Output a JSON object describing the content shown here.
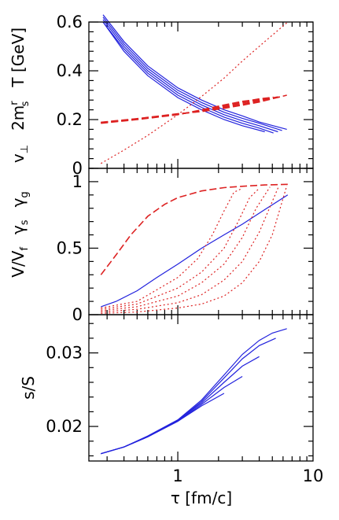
{
  "chart_data": [
    {
      "type": "line",
      "panel": "top",
      "ylabel_parts": {
        "v": "v",
        "v_sub": "⊥",
        "m_pre": "2m",
        "m_sup": "r",
        "m_sub": "s",
        "t": "T [GeV]"
      },
      "xscale": "log",
      "xlim": [
        0.22,
        10
      ],
      "ylim": [
        0,
        0.6
      ],
      "yticks": [
        0,
        0.2,
        0.4,
        0.6
      ],
      "yticklabels": [
        "0",
        "0.2",
        "0.4",
        "0.6"
      ],
      "grid": false,
      "series": [
        {
          "group": "T",
          "color": "#2222dd",
          "style": "solid",
          "x": [
            0.28,
            0.4,
            0.6,
            1.0,
            1.5,
            2.2,
            3.0,
            4.4
          ],
          "y": [
            0.6,
            0.48,
            0.38,
            0.29,
            0.24,
            0.2,
            0.175,
            0.15
          ]
        },
        {
          "group": "T",
          "color": "#2222dd",
          "style": "solid",
          "x": [
            0.28,
            0.4,
            0.6,
            1.0,
            1.5,
            2.2,
            3.0,
            4.0,
            5.1
          ],
          "y": [
            0.6,
            0.49,
            0.39,
            0.3,
            0.25,
            0.21,
            0.185,
            0.165,
            0.145
          ]
        },
        {
          "group": "T",
          "color": "#2222dd",
          "style": "solid",
          "x": [
            0.28,
            0.4,
            0.6,
            1.0,
            1.5,
            2.2,
            3.0,
            4.0,
            5.5
          ],
          "y": [
            0.61,
            0.5,
            0.4,
            0.31,
            0.26,
            0.22,
            0.195,
            0.175,
            0.15
          ]
        },
        {
          "group": "T",
          "color": "#2222dd",
          "style": "solid",
          "x": [
            0.28,
            0.4,
            0.6,
            1.0,
            1.5,
            2.2,
            3.0,
            4.0,
            5.9
          ],
          "y": [
            0.62,
            0.51,
            0.41,
            0.32,
            0.27,
            0.23,
            0.205,
            0.185,
            0.155
          ]
        },
        {
          "group": "T",
          "color": "#2222dd",
          "style": "solid",
          "x": [
            0.28,
            0.4,
            0.6,
            1.0,
            1.5,
            2.2,
            3.0,
            4.0,
            6.4
          ],
          "y": [
            0.63,
            0.52,
            0.42,
            0.33,
            0.28,
            0.24,
            0.215,
            0.19,
            0.16
          ]
        },
        {
          "group": "v_perp",
          "color": "#dd2222",
          "style": "dotted",
          "x": [
            0.27,
            0.4,
            0.6,
            1.0,
            1.5,
            2.2,
            3.0,
            4.4,
            6.5
          ],
          "y": [
            0.02,
            0.075,
            0.135,
            0.22,
            0.295,
            0.37,
            0.44,
            0.52,
            0.6
          ]
        },
        {
          "group": "2m_s",
          "color": "#dd2222",
          "style": "dashed",
          "x": [
            0.27,
            0.5,
            1.0,
            1.5,
            2.2,
            3.0,
            4.4
          ],
          "y": [
            0.185,
            0.2,
            0.22,
            0.24,
            0.26,
            0.275,
            0.285
          ]
        },
        {
          "group": "2m_s",
          "color": "#dd2222",
          "style": "dashed",
          "x": [
            0.27,
            0.5,
            1.0,
            1.5,
            2.2,
            3.0,
            4.0,
            5.1
          ],
          "y": [
            0.186,
            0.201,
            0.221,
            0.237,
            0.256,
            0.273,
            0.285,
            0.292
          ]
        },
        {
          "group": "2m_s",
          "color": "#dd2222",
          "style": "dashed",
          "x": [
            0.27,
            0.5,
            1.0,
            1.5,
            2.2,
            3.0,
            4.0,
            5.5
          ],
          "y": [
            0.187,
            0.202,
            0.222,
            0.235,
            0.252,
            0.268,
            0.28,
            0.293
          ]
        },
        {
          "group": "2m_s",
          "color": "#dd2222",
          "style": "dashed",
          "x": [
            0.27,
            0.5,
            1.0,
            1.5,
            2.2,
            3.0,
            4.0,
            5.9
          ],
          "y": [
            0.188,
            0.203,
            0.223,
            0.234,
            0.249,
            0.263,
            0.276,
            0.295
          ]
        },
        {
          "group": "2m_s",
          "color": "#dd2222",
          "style": "dashed",
          "x": [
            0.27,
            0.5,
            1.0,
            1.5,
            2.2,
            3.0,
            4.0,
            6.4
          ],
          "y": [
            0.189,
            0.204,
            0.224,
            0.233,
            0.246,
            0.259,
            0.272,
            0.3
          ]
        }
      ]
    },
    {
      "type": "line",
      "panel": "middle",
      "ylabel_parts": {
        "vv": "V/V",
        "vv_sub": "f",
        "gs": "γ",
        "gs_sub": "s",
        "gg": "γ",
        "gg_sub": "g"
      },
      "xscale": "log",
      "xlim": [
        0.22,
        10
      ],
      "ylim": [
        0,
        1.1
      ],
      "yticks": [
        0,
        0.5,
        1
      ],
      "yticklabels": [
        "0",
        "0.5",
        "1"
      ],
      "grid": false,
      "series": [
        {
          "group": "gamma_g",
          "color": "#dd2222",
          "style": "dashed",
          "x": [
            0.27,
            0.35,
            0.45,
            0.6,
            0.8,
            1.0,
            1.5,
            2.2,
            3.0,
            4.4,
            6.5
          ],
          "y": [
            0.3,
            0.45,
            0.6,
            0.74,
            0.83,
            0.88,
            0.93,
            0.955,
            0.965,
            0.975,
            0.98
          ]
        },
        {
          "group": "V/V_f",
          "color": "#2222dd",
          "style": "solid",
          "x": [
            0.27,
            0.35,
            0.5,
            0.7,
            1.0,
            1.5,
            2.2,
            3.0,
            4.4,
            6.5
          ],
          "y": [
            0.06,
            0.1,
            0.18,
            0.28,
            0.38,
            0.5,
            0.6,
            0.68,
            0.79,
            0.9
          ]
        },
        {
          "group": "gamma_s",
          "color": "#dd2222",
          "style": "dotted",
          "x": [
            0.27,
            0.5,
            1.0,
            1.4,
            1.8,
            2.2,
            2.6,
            3.0
          ],
          "y": [
            0.05,
            0.1,
            0.28,
            0.42,
            0.6,
            0.78,
            0.92,
            0.95
          ]
        },
        {
          "group": "gamma_s",
          "color": "#dd2222",
          "style": "dotted",
          "x": [
            0.27,
            0.5,
            1.0,
            1.5,
            2.2,
            2.8,
            3.4,
            4.0
          ],
          "y": [
            0.04,
            0.08,
            0.2,
            0.32,
            0.5,
            0.7,
            0.88,
            0.95
          ]
        },
        {
          "group": "gamma_s",
          "color": "#dd2222",
          "style": "dotted",
          "x": [
            0.27,
            0.5,
            1.0,
            1.5,
            2.2,
            3.0,
            3.8,
            4.8
          ],
          "y": [
            0.03,
            0.06,
            0.14,
            0.24,
            0.38,
            0.58,
            0.8,
            0.96
          ]
        },
        {
          "group": "gamma_s",
          "color": "#dd2222",
          "style": "dotted",
          "x": [
            0.27,
            0.5,
            1.0,
            1.5,
            2.2,
            3.0,
            4.0,
            5.6
          ],
          "y": [
            0.02,
            0.04,
            0.09,
            0.15,
            0.26,
            0.4,
            0.62,
            0.97
          ]
        },
        {
          "group": "gamma_s",
          "color": "#dd2222",
          "style": "dotted",
          "x": [
            0.27,
            0.5,
            1.0,
            1.5,
            2.2,
            3.0,
            4.0,
            5.0,
            6.4
          ],
          "y": [
            0.01,
            0.02,
            0.05,
            0.08,
            0.14,
            0.24,
            0.4,
            0.6,
            0.97
          ]
        }
      ]
    },
    {
      "type": "line",
      "panel": "bottom",
      "ylabel": "s/S",
      "xlabel": "τ [fm/c]",
      "xscale": "log",
      "xlim": [
        0.22,
        10
      ],
      "ylim": [
        0.0153,
        0.0352
      ],
      "yticks": [
        0.02,
        0.03
      ],
      "yticklabels": [
        "0.02",
        "0.03"
      ],
      "xticks": [
        1,
        10
      ],
      "xticklabels": [
        "1",
        "10"
      ],
      "grid": false,
      "series": [
        {
          "color": "#2222dd",
          "style": "solid",
          "x": [
            0.27,
            0.4,
            0.6,
            1.0,
            1.5,
            2.2
          ],
          "y": [
            0.0163,
            0.0172,
            0.0186,
            0.0207,
            0.0228,
            0.0245
          ]
        },
        {
          "color": "#2222dd",
          "style": "solid",
          "x": [
            0.27,
            0.4,
            0.6,
            1.0,
            1.5,
            2.2,
            3.0
          ],
          "y": [
            0.0163,
            0.0172,
            0.0186,
            0.0207,
            0.023,
            0.0253,
            0.0268
          ]
        },
        {
          "color": "#2222dd",
          "style": "solid",
          "x": [
            0.27,
            0.4,
            0.6,
            1.0,
            1.5,
            2.2,
            3.0,
            4.0
          ],
          "y": [
            0.0163,
            0.0172,
            0.0186,
            0.0208,
            0.0232,
            0.026,
            0.0282,
            0.0295
          ]
        },
        {
          "color": "#2222dd",
          "style": "solid",
          "x": [
            0.27,
            0.4,
            0.6,
            1.0,
            1.5,
            2.2,
            3.0,
            4.0,
            5.3
          ],
          "y": [
            0.0163,
            0.0172,
            0.0186,
            0.0208,
            0.0234,
            0.0266,
            0.0292,
            0.031,
            0.032
          ]
        },
        {
          "color": "#2222dd",
          "style": "solid",
          "x": [
            0.27,
            0.4,
            0.6,
            1.0,
            1.5,
            2.2,
            3.0,
            4.0,
            5.0,
            6.4
          ],
          "y": [
            0.0163,
            0.0172,
            0.0187,
            0.0209,
            0.0236,
            0.027,
            0.0298,
            0.0317,
            0.0327,
            0.0333
          ]
        }
      ]
    }
  ]
}
